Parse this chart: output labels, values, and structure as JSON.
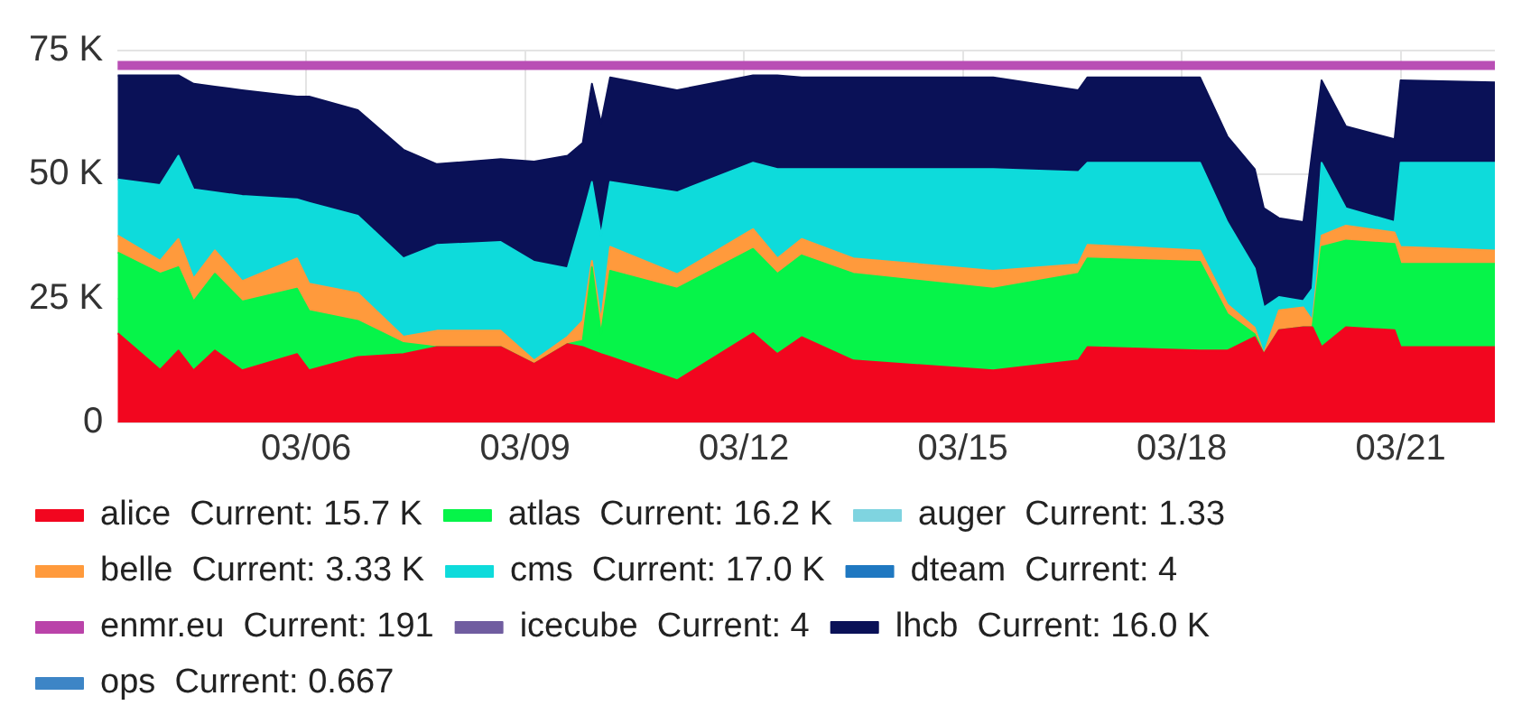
{
  "chart_data": {
    "type": "area",
    "stacked": true,
    "grid": true,
    "legend": "bottom",
    "marker": "none",
    "x": [
      "--03-03T10:00",
      "--03-04T00:00",
      "--03-04T06:00",
      "--03-04T11:00",
      "--03-04T18:00",
      "--03-05T03:00",
      "--03-05T21:00",
      "--03-06T01:00",
      "--03-06T17:00",
      "--03-07T08:00",
      "--03-07T19:00",
      "--03-08T16:00",
      "--03-09T03:00",
      "--03-09T14:00",
      "--03-09T19:00",
      "--03-09T22:00",
      "--03-10T01:00",
      "--03-10T04:00",
      "--03-11T02:00",
      "--03-12T03:00",
      "--03-12T11:00",
      "--03-12T19:00",
      "--03-13T12:00",
      "--03-15T10:00",
      "--03-16T14:00",
      "--03-16T17:00",
      "--03-18T06:00",
      "--03-18T15:00",
      "--03-19T00:00",
      "--03-19T03:00",
      "--03-19T08:00",
      "--03-19T16:00",
      "--03-19T19:00",
      "--03-19T22:00",
      "--03-20T06:00",
      "--03-20T22:00",
      "--03-21T00:00",
      "--03-22T07:00"
    ],
    "xlim": [
      "--03-03T10:00",
      "--03-22T07:00"
    ],
    "xticks": [
      {
        "value": "--03-06",
        "label": "03/06"
      },
      {
        "value": "--03-09",
        "label": "03/09"
      },
      {
        "value": "--03-12",
        "label": "03/12"
      },
      {
        "value": "--03-15",
        "label": "03/15"
      },
      {
        "value": "--03-18",
        "label": "03/18"
      },
      {
        "value": "--03-21",
        "label": "03/21"
      }
    ],
    "ylim": [
      0,
      75000
    ],
    "yticks": [
      0,
      {
        "value": 25000,
        "label": "25 K"
      },
      {
        "value": 50000,
        "label": "50 K"
      },
      {
        "value": 75000,
        "label": "75 K"
      }
    ],
    "ref_lines": [
      {
        "axis": "y",
        "value": 72000,
        "color": "#b94fb5"
      }
    ],
    "series": [
      {
        "name": "alice  Current: 15.7 K",
        "color": "#f2061f",
        "values": [
          18000,
          10600,
          14500,
          10500,
          14500,
          10500,
          13800,
          10500,
          13200,
          13800,
          15200,
          15200,
          11800,
          15800,
          15200,
          14500,
          13800,
          13200,
          8500,
          18000,
          13800,
          17200,
          12500,
          10500,
          12500,
          15200,
          14500,
          14500,
          17200,
          13800,
          18600,
          19200,
          19200,
          15200,
          19200,
          18600,
          15200,
          15200
        ]
      },
      {
        "name": "atlas  Current: 16.2 K",
        "color": "#06f449",
        "values": [
          16300,
          19400,
          16800,
          13900,
          15500,
          13900,
          13200,
          12000,
          7300,
          2200,
          0,
          0,
          0,
          0,
          1300,
          16800,
          4000,
          17400,
          18500,
          17000,
          16200,
          16500,
          17500,
          16500,
          17500,
          17900,
          17900,
          7400,
          600,
          0,
          0,
          0,
          0,
          20200,
          17500,
          17400,
          16800,
          16800
        ]
      },
      {
        "name": "auger  Current: 1.33",
        "color": "#7fd4e0",
        "values": [
          null,
          null,
          null,
          null,
          null,
          null,
          null,
          null,
          null,
          null,
          null,
          null,
          null,
          null,
          null,
          null,
          null,
          null,
          null,
          null,
          null,
          null,
          null,
          null,
          null,
          null,
          null,
          null,
          null,
          null,
          null,
          null,
          null,
          null,
          null,
          null,
          null,
          null
        ]
      },
      {
        "name": "belle  Current: 3.33 K",
        "color": "#ff9a3c",
        "values": [
          3400,
          2600,
          5700,
          4600,
          4700,
          4100,
          6100,
          5500,
          5600,
          1300,
          3300,
          3300,
          700,
          1500,
          4000,
          1300,
          2700,
          4800,
          2900,
          4000,
          3100,
          3300,
          3100,
          3600,
          1900,
          2700,
          2300,
          1900,
          1300,
          0,
          4000,
          4000,
          1300,
          2300,
          3000,
          2300,
          3400,
          2700
        ]
      },
      {
        "name": "cms  Current: 17.0 K",
        "color": "#0edbdb",
        "values": [
          11300,
          15300,
          16800,
          18000,
          11700,
          17200,
          11900,
          16300,
          15600,
          15800,
          17300,
          17900,
          19900,
          13800,
          21200,
          15900,
          17200,
          13100,
          16500,
          13400,
          18000,
          14100,
          18000,
          20500,
          18600,
          16600,
          17700,
          16600,
          12000,
          9400,
          2700,
          1300,
          6500,
          14700,
          3500,
          2100,
          17000,
          17700
        ]
      },
      {
        "name": "dteam  Current: 4",
        "color": "#1f78c1",
        "values": [
          null,
          null,
          null,
          null,
          null,
          null,
          null,
          null,
          null,
          null,
          null,
          null,
          null,
          null,
          null,
          null,
          null,
          null,
          null,
          null,
          null,
          null,
          null,
          null,
          null,
          null,
          null,
          null,
          null,
          null,
          null,
          null,
          null,
          null,
          null,
          null,
          null,
          null
        ]
      },
      {
        "name": "enmr.eu  Current: 191",
        "color": "#ba43a9",
        "values": [
          null,
          null,
          null,
          null,
          null,
          null,
          null,
          null,
          null,
          null,
          null,
          null,
          null,
          null,
          null,
          null,
          null,
          null,
          null,
          null,
          null,
          null,
          null,
          null,
          null,
          null,
          null,
          null,
          null,
          null,
          null,
          null,
          null,
          null,
          null,
          null,
          null,
          null
        ]
      },
      {
        "name": "icecube  Current: 4",
        "color": "#705da0",
        "values": [
          null,
          null,
          null,
          null,
          null,
          null,
          null,
          null,
          null,
          null,
          null,
          null,
          null,
          null,
          null,
          null,
          null,
          null,
          null,
          null,
          null,
          null,
          null,
          null,
          null,
          null,
          null,
          null,
          null,
          null,
          null,
          null,
          null,
          null,
          null,
          null,
          null,
          null
        ]
      },
      {
        "name": "lhcb  Current: 16.0 K",
        "color": "#0a1157",
        "values": [
          21000,
          22100,
          16200,
          21300,
          21300,
          21300,
          20700,
          21400,
          21300,
          21900,
          16300,
          16700,
          20200,
          22700,
          14700,
          19800,
          22700,
          21100,
          20600,
          17600,
          18900,
          18500,
          18500,
          18500,
          16500,
          17200,
          17200,
          17300,
          20000,
          20000,
          15900,
          15900,
          28000,
          16600,
          16500,
          16700,
          16600,
          16200
        ]
      },
      {
        "name": "ops  Current: 0.667",
        "color": "#3d85c6",
        "values": [
          null,
          null,
          null,
          null,
          null,
          null,
          null,
          null,
          null,
          null,
          null,
          null,
          null,
          null,
          null,
          null,
          null,
          null,
          null,
          null,
          null,
          null,
          null,
          null,
          null,
          null,
          null,
          null,
          null,
          null,
          null,
          null,
          null,
          null,
          null,
          null,
          null,
          null
        ]
      }
    ]
  }
}
